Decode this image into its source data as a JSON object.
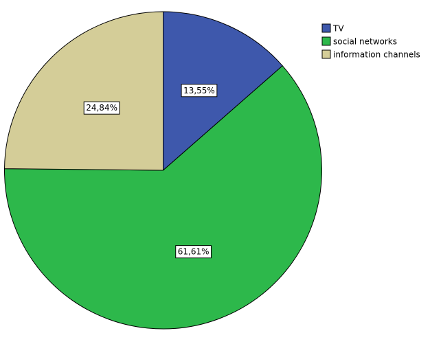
{
  "chart_data": {
    "type": "pie",
    "categories": [
      "TV",
      "social networks",
      "information channels"
    ],
    "values": [
      13.55,
      61.61,
      24.84
    ],
    "value_labels": [
      "13,55%",
      "61,61%",
      "24,84%"
    ],
    "colors": [
      "#3e58ac",
      "#2db84b",
      "#d4cd98"
    ],
    "legend": "top-right"
  }
}
